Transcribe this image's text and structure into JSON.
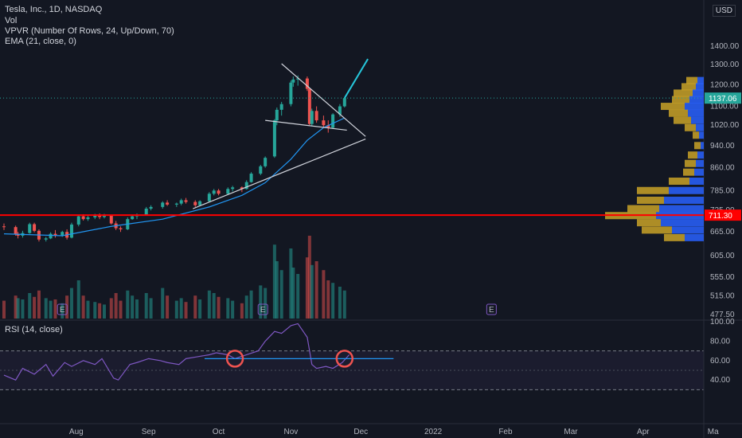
{
  "header": {
    "title": "Tesla, Inc., 1D, NASDAQ",
    "ind_vol": "Vol",
    "ind_vpvr": "VPVR (Number Of Rows, 24, Up/Down, 70)",
    "ind_ema": "EMA (21, close, 0)",
    "currency": "USD"
  },
  "rsi": {
    "label": "RSI (14, close)",
    "ticks": [
      "100.00",
      "80.00",
      "60.00",
      "40.00"
    ],
    "upper": 70,
    "lower": 30,
    "mid_line": 62,
    "markers": [
      {
        "date": "2021-10-08",
        "value": 62
      },
      {
        "date": "2021-11-24",
        "value": 62
      }
    ],
    "series": [
      [
        "2021-07-01",
        45
      ],
      [
        "2021-07-06",
        40
      ],
      [
        "2021-07-09",
        52
      ],
      [
        "2021-07-14",
        46
      ],
      [
        "2021-07-19",
        56
      ],
      [
        "2021-07-22",
        44
      ],
      [
        "2021-07-27",
        58
      ],
      [
        "2021-07-30",
        54
      ],
      [
        "2021-08-04",
        60
      ],
      [
        "2021-08-09",
        56
      ],
      [
        "2021-08-12",
        62
      ],
      [
        "2021-08-17",
        42
      ],
      [
        "2021-08-19",
        40
      ],
      [
        "2021-08-24",
        56
      ],
      [
        "2021-08-27",
        58
      ],
      [
        "2021-09-01",
        62
      ],
      [
        "2021-09-06",
        60
      ],
      [
        "2021-09-09",
        58
      ],
      [
        "2021-09-14",
        56
      ],
      [
        "2021-09-17",
        62
      ],
      [
        "2021-09-22",
        64
      ],
      [
        "2021-09-27",
        66
      ],
      [
        "2021-09-30",
        68
      ],
      [
        "2021-10-05",
        66
      ],
      [
        "2021-10-08",
        62
      ],
      [
        "2021-10-13",
        66
      ],
      [
        "2021-10-18",
        70
      ],
      [
        "2021-10-21",
        80
      ],
      [
        "2021-10-25",
        90
      ],
      [
        "2021-10-28",
        88
      ],
      [
        "2021-11-01",
        96
      ],
      [
        "2021-11-04",
        98
      ],
      [
        "2021-11-08",
        84
      ],
      [
        "2021-11-10",
        56
      ],
      [
        "2021-11-12",
        52
      ],
      [
        "2021-11-16",
        54
      ],
      [
        "2021-11-19",
        52
      ],
      [
        "2021-11-23",
        58
      ],
      [
        "2021-11-26",
        66
      ]
    ]
  },
  "price_axis": {
    "ticks": [
      "1400.00",
      "1300.00",
      "1200.00",
      "1100.00",
      "1020.00",
      "940.00",
      "860.00",
      "785.00",
      "725.00",
      "665.00",
      "605.00",
      "555.00",
      "515.00",
      "477.50"
    ],
    "current": "1137.06",
    "current_value": 1137.06,
    "line": "711.30",
    "line_value": 711.3
  },
  "time_axis": [
    "Aug",
    "Sep",
    "Oct",
    "Nov",
    "Dec",
    "2022",
    "Feb",
    "Mar",
    "Apr",
    "Ma"
  ],
  "earnings_label": "E",
  "colors": {
    "up": "#26a69a",
    "down": "#ef5350",
    "ema": "#2196f3",
    "rsi": "#7e57c2",
    "level": "#ff0000",
    "forecast": "#26c6da",
    "vp_up": "#2962ff",
    "vp_down": "#c9a227"
  },
  "chart_data": {
    "type": "candlestick",
    "title": "Tesla, Inc., 1D, NASDAQ",
    "candles": [
      [
        "2021-07-01",
        680,
        688,
        670,
        678
      ],
      [
        "2021-07-06",
        678,
        682,
        655,
        660
      ],
      [
        "2021-07-07",
        660,
        665,
        648,
        655
      ],
      [
        "2021-07-09",
        655,
        668,
        650,
        662
      ],
      [
        "2021-07-12",
        662,
        690,
        660,
        686
      ],
      [
        "2021-07-14",
        686,
        690,
        664,
        668
      ],
      [
        "2021-07-16",
        668,
        672,
        640,
        645
      ],
      [
        "2021-07-19",
        645,
        652,
        640,
        648
      ],
      [
        "2021-07-21",
        648,
        664,
        646,
        660
      ],
      [
        "2021-07-23",
        660,
        670,
        650,
        655
      ],
      [
        "2021-07-26",
        655,
        668,
        652,
        665
      ],
      [
        "2021-07-28",
        665,
        672,
        645,
        650
      ],
      [
        "2021-07-30",
        650,
        690,
        648,
        685
      ],
      [
        "2021-08-02",
        685,
        712,
        680,
        708
      ],
      [
        "2021-08-04",
        708,
        714,
        696,
        700
      ],
      [
        "2021-08-06",
        700,
        712,
        695,
        705
      ],
      [
        "2021-08-09",
        705,
        715,
        700,
        710
      ],
      [
        "2021-08-11",
        710,
        716,
        700,
        706
      ],
      [
        "2021-08-13",
        706,
        715,
        702,
        712
      ],
      [
        "2021-08-16",
        712,
        712,
        685,
        688
      ],
      [
        "2021-08-18",
        688,
        695,
        670,
        675
      ],
      [
        "2021-08-20",
        675,
        680,
        665,
        672
      ],
      [
        "2021-08-23",
        672,
        705,
        670,
        700
      ],
      [
        "2021-08-25",
        700,
        712,
        698,
        708
      ],
      [
        "2021-08-27",
        708,
        716,
        700,
        712
      ],
      [
        "2021-08-31",
        712,
        735,
        710,
        730
      ],
      [
        "2021-09-02",
        730,
        740,
        725,
        735
      ],
      [
        "2021-09-07",
        735,
        752,
        730,
        748
      ],
      [
        "2021-09-09",
        748,
        755,
        738,
        742
      ],
      [
        "2021-09-13",
        742,
        748,
        735,
        745
      ],
      [
        "2021-09-15",
        745,
        760,
        740,
        755
      ],
      [
        "2021-09-17",
        755,
        762,
        745,
        750
      ],
      [
        "2021-09-21",
        750,
        755,
        735,
        740
      ],
      [
        "2021-09-23",
        740,
        755,
        738,
        752
      ],
      [
        "2021-09-27",
        752,
        780,
        750,
        775
      ],
      [
        "2021-09-29",
        775,
        790,
        770,
        785
      ],
      [
        "2021-10-01",
        785,
        790,
        770,
        775
      ],
      [
        "2021-10-05",
        775,
        795,
        772,
        790
      ],
      [
        "2021-10-07",
        790,
        800,
        782,
        795
      ],
      [
        "2021-10-11",
        795,
        798,
        780,
        790
      ],
      [
        "2021-10-13",
        790,
        818,
        788,
        812
      ],
      [
        "2021-10-15",
        812,
        845,
        810,
        840
      ],
      [
        "2021-10-19",
        840,
        870,
        835,
        865
      ],
      [
        "2021-10-21",
        865,
        900,
        860,
        895
      ],
      [
        "2021-10-25",
        900,
        1045,
        895,
        1040
      ],
      [
        "2021-10-26",
        1040,
        1095,
        1020,
        1085
      ],
      [
        "2021-10-28",
        1085,
        1120,
        1060,
        1110
      ],
      [
        "2021-11-01",
        1110,
        1220,
        1100,
        1210
      ],
      [
        "2021-11-02",
        1210,
        1240,
        1190,
        1225
      ],
      [
        "2021-11-04",
        1225,
        1245,
        1195,
        1230
      ],
      [
        "2021-11-08",
        1230,
        1240,
        1170,
        1180
      ],
      [
        "2021-11-09",
        1180,
        1185,
        1020,
        1025
      ],
      [
        "2021-11-10",
        1025,
        1090,
        1015,
        1080
      ],
      [
        "2021-11-12",
        1080,
        1100,
        1030,
        1040
      ],
      [
        "2021-11-15",
        1040,
        1060,
        1010,
        1020
      ],
      [
        "2021-11-17",
        1020,
        1040,
        990,
        1010
      ],
      [
        "2021-11-19",
        1010,
        1070,
        1005,
        1065
      ],
      [
        "2021-11-22",
        1065,
        1110,
        1055,
        1100
      ],
      [
        "2021-11-24",
        1100,
        1140,
        1095,
        1137
      ]
    ],
    "ema": [
      [
        "2021-07-01",
        660
      ],
      [
        "2021-07-26",
        655
      ],
      [
        "2021-08-16",
        680
      ],
      [
        "2021-09-07",
        700
      ],
      [
        "2021-09-27",
        735
      ],
      [
        "2021-10-11",
        770
      ],
      [
        "2021-10-21",
        810
      ],
      [
        "2021-11-01",
        890
      ],
      [
        "2021-11-08",
        960
      ],
      [
        "2021-11-15",
        1010
      ],
      [
        "2021-11-24",
        1050
      ]
    ],
    "volume": [
      [
        14,
        false
      ],
      [
        18,
        false
      ],
      [
        16,
        true
      ],
      [
        15,
        true
      ],
      [
        20,
        true
      ],
      [
        17,
        false
      ],
      [
        22,
        false
      ],
      [
        16,
        true
      ],
      [
        14,
        true
      ],
      [
        15,
        false
      ],
      [
        12,
        true
      ],
      [
        18,
        false
      ],
      [
        24,
        true
      ],
      [
        30,
        true
      ],
      [
        18,
        false
      ],
      [
        14,
        true
      ],
      [
        13,
        true
      ],
      [
        12,
        false
      ],
      [
        11,
        true
      ],
      [
        16,
        false
      ],
      [
        20,
        false
      ],
      [
        14,
        false
      ],
      [
        22,
        true
      ],
      [
        18,
        true
      ],
      [
        15,
        true
      ],
      [
        20,
        true
      ],
      [
        16,
        true
      ],
      [
        24,
        true
      ],
      [
        18,
        false
      ],
      [
        14,
        true
      ],
      [
        16,
        true
      ],
      [
        13,
        false
      ],
      [
        18,
        false
      ],
      [
        15,
        true
      ],
      [
        22,
        true
      ],
      [
        20,
        true
      ],
      [
        17,
        false
      ],
      [
        16,
        true
      ],
      [
        14,
        true
      ],
      [
        12,
        false
      ],
      [
        18,
        true
      ],
      [
        22,
        true
      ],
      [
        26,
        true
      ],
      [
        24,
        true
      ],
      [
        58,
        true
      ],
      [
        45,
        true
      ],
      [
        38,
        true
      ],
      [
        55,
        true
      ],
      [
        40,
        true
      ],
      [
        35,
        true
      ],
      [
        48,
        false
      ],
      [
        65,
        false
      ],
      [
        42,
        true
      ],
      [
        45,
        false
      ],
      [
        38,
        false
      ],
      [
        30,
        false
      ],
      [
        28,
        true
      ],
      [
        25,
        true
      ],
      [
        22,
        true
      ]
    ],
    "volume_profile": [
      {
        "price": 1220,
        "up": 8,
        "down": 14
      },
      {
        "price": 1190,
        "up": 10,
        "down": 18
      },
      {
        "price": 1160,
        "up": 14,
        "down": 24
      },
      {
        "price": 1130,
        "up": 18,
        "down": 22
      },
      {
        "price": 1100,
        "up": 24,
        "down": 30
      },
      {
        "price": 1070,
        "up": 20,
        "down": 24
      },
      {
        "price": 1040,
        "up": 16,
        "down": 22
      },
      {
        "price": 1010,
        "up": 10,
        "down": 14
      },
      {
        "price": 980,
        "up": 6,
        "down": 8
      },
      {
        "price": 940,
        "up": 4,
        "down": 8
      },
      {
        "price": 905,
        "up": 8,
        "down": 12
      },
      {
        "price": 875,
        "up": 10,
        "down": 14
      },
      {
        "price": 845,
        "up": 12,
        "down": 14
      },
      {
        "price": 815,
        "up": 18,
        "down": 26
      },
      {
        "price": 785,
        "up": 44,
        "down": 40
      },
      {
        "price": 755,
        "up": 50,
        "down": 34
      },
      {
        "price": 730,
        "up": 56,
        "down": 40
      },
      {
        "price": 710,
        "up": 60,
        "down": 64
      },
      {
        "price": 690,
        "up": 54,
        "down": 30
      },
      {
        "price": 670,
        "up": 40,
        "down": 38
      },
      {
        "price": 650,
        "up": 24,
        "down": 26
      }
    ],
    "trendlines": [
      {
        "from": [
          "2021-10-28",
          1305
        ],
        "to": [
          "2021-12-03",
          975
        ]
      },
      {
        "from": [
          "2021-10-21",
          1040
        ],
        "to": [
          "2021-11-25",
          1000
        ]
      },
      {
        "from": [
          "2021-09-20",
          730
        ],
        "to": [
          "2021-12-03",
          965
        ]
      }
    ],
    "forecast": [
      [
        "2021-11-24",
        1137
      ],
      [
        "2021-12-04",
        1330
      ]
    ],
    "earnings_dates": [
      "2021-07-26",
      "2021-10-20",
      "2022-01-26"
    ],
    "level": 711.3,
    "current_price": 1137.06
  }
}
